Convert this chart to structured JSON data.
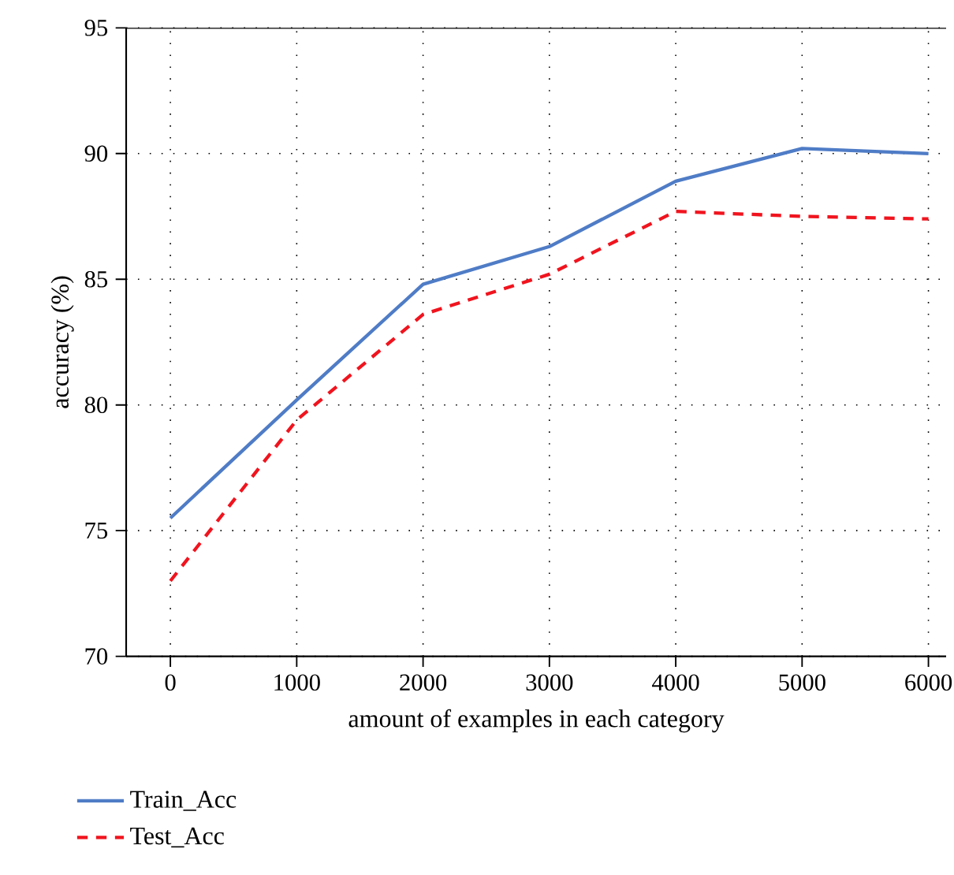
{
  "chart_data": {
    "type": "line",
    "xlabel": "amount of examples in each category",
    "ylabel": "accuracy (%)",
    "x": [
      0,
      1000,
      2000,
      3000,
      4000,
      5000,
      6000
    ],
    "series": [
      {
        "name": "Train_Acc",
        "color": "#4f7cc6",
        "line_style": "solid",
        "values": [
          75.5,
          80.2,
          84.8,
          86.3,
          88.9,
          90.2,
          90.0
        ]
      },
      {
        "name": "Test_Acc",
        "color": "#f0141e",
        "line_style": "dashed",
        "values": [
          73.0,
          79.4,
          83.6,
          85.2,
          87.7,
          87.5,
          87.4
        ]
      }
    ],
    "xlim": [
      -350,
      6140
    ],
    "ylim": [
      70,
      95
    ],
    "xticks": [
      0,
      1000,
      2000,
      3000,
      4000,
      5000,
      6000
    ],
    "yticks": [
      70,
      75,
      80,
      85,
      90,
      95
    ],
    "grid": true,
    "legend": "bottom",
    "marker": "none"
  }
}
